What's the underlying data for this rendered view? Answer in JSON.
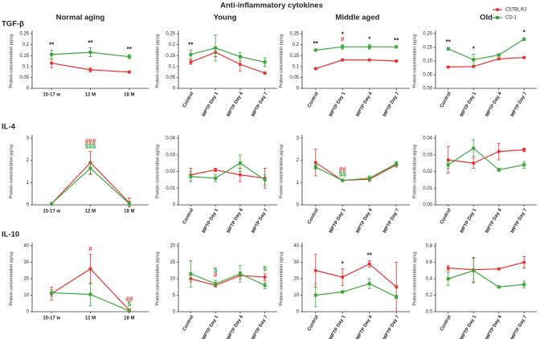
{
  "figure": {
    "title": "Anti-inflammatory cytokines",
    "columns": [
      "Normal aging",
      "Young",
      "Middle aged",
      "Old"
    ],
    "rows": [
      "TGF-β",
      "IL-4",
      "IL-10"
    ]
  },
  "chart_data": [
    {
      "type": "line",
      "ylabel": "Protein concentration pg/ug",
      "categories": [
        "15-17 w",
        "12 M",
        "18 M"
      ],
      "ylim": [
        0,
        0.25
      ],
      "yticks": [
        0,
        0.05,
        0.1,
        0.15,
        0.2,
        0.25
      ],
      "series": [
        {
          "name": "C57BL/6J",
          "color": "#e8312f",
          "marker": "circle",
          "values": [
            0.115,
            0.085,
            0.075
          ],
          "errors": [
            0.02,
            0.01,
            0.005
          ]
        },
        {
          "name": "CD-1",
          "color": "#3aa83a",
          "marker": "square",
          "values": [
            0.155,
            0.165,
            0.145
          ],
          "errors": [
            0.02,
            0.02,
            0.01
          ]
        }
      ],
      "annotations": [
        {
          "category": 0,
          "text": "**",
          "color": "#222"
        },
        {
          "category": 1,
          "text": "**",
          "color": "#222"
        },
        {
          "category": 2,
          "text": "**",
          "color": "#222"
        }
      ]
    },
    {
      "type": "line",
      "ylabel": "Protein concentration pg/ug",
      "categories": [
        "Control",
        "MPTP Day 1",
        "MPTP Day 4",
        "MPTP Day 7"
      ],
      "ylim": [
        0,
        0.25
      ],
      "yticks": [
        0,
        0.05,
        0.1,
        0.15,
        0.2,
        0.25
      ],
      "series": [
        {
          "name": "C57BL/6J",
          "color": "#e8312f",
          "marker": "circle",
          "values": [
            0.12,
            0.165,
            0.11,
            0.07
          ],
          "errors": [
            0.01,
            0.02,
            0.03,
            0.005
          ]
        },
        {
          "name": "CD-1",
          "color": "#3aa83a",
          "marker": "square",
          "values": [
            0.155,
            0.185,
            0.145,
            0.12
          ],
          "errors": [
            0.02,
            0.06,
            0.02,
            0.02
          ]
        }
      ],
      "annotations": [
        {
          "category": 0,
          "text": "**",
          "color": "#222"
        }
      ]
    },
    {
      "type": "line",
      "ylabel": "Protein concentration pg/ug",
      "categories": [
        "Control",
        "MPTP Day 1",
        "MPTP Day 4",
        "MPTP Day 7"
      ],
      "ylim": [
        0,
        0.25
      ],
      "yticks": [
        0,
        0.05,
        0.1,
        0.15,
        0.2,
        0.25
      ],
      "series": [
        {
          "name": "C57BL/6J",
          "color": "#e8312f",
          "marker": "circle",
          "values": [
            0.09,
            0.13,
            0.13,
            0.125
          ],
          "errors": [
            0.005,
            0.005,
            0.005,
            0.005
          ]
        },
        {
          "name": "CD-1",
          "color": "#3aa83a",
          "marker": "square",
          "values": [
            0.175,
            0.19,
            0.19,
            0.19
          ],
          "errors": [
            0.005,
            0.01,
            0.01,
            0.005
          ]
        }
      ],
      "annotations": [
        {
          "category": 0,
          "text": "**",
          "color": "#222"
        },
        {
          "category": 1,
          "text": "#",
          "color": "#e8312f"
        },
        {
          "category": 1,
          "text": "*",
          "color": "#222"
        },
        {
          "category": 2,
          "text": "*",
          "color": "#222"
        },
        {
          "category": 3,
          "text": "**",
          "color": "#222"
        }
      ]
    },
    {
      "type": "line",
      "ylabel": "Protein concentration pg/ug",
      "categories": [
        "Control",
        "MPTP Day 1",
        "MPTP Day 4",
        "MPTP Day 7"
      ],
      "ylim": [
        0,
        0.2
      ],
      "yticks": [
        {
          "value": 0,
          "label": "0.00"
        },
        {
          "value": 0.05,
          "label": "0.05"
        },
        {
          "value": 0.1,
          "label": "0.10"
        },
        {
          "value": 0.15,
          "label": "0.15"
        },
        {
          "value": 0.2,
          "label": "0.20"
        }
      ],
      "legend": "upper right",
      "series": [
        {
          "name": "C57BL/6J",
          "color": "#e8312f",
          "marker": "circle",
          "values": [
            0.078,
            0.08,
            0.108,
            0.113
          ],
          "errors": [
            0.003,
            0.003,
            0.004,
            0.003
          ]
        },
        {
          "name": "CD-1",
          "color": "#3aa83a",
          "marker": "square",
          "values": [
            0.145,
            0.105,
            0.122,
            0.18
          ],
          "errors": [
            0.005,
            0.02,
            0.005,
            0.005
          ]
        }
      ],
      "annotations": [
        {
          "category": 0,
          "text": "**",
          "color": "#222"
        },
        {
          "category": 1,
          "text": "*",
          "color": "#222"
        },
        {
          "category": 3,
          "text": "*",
          "color": "#222"
        }
      ]
    },
    {
      "type": "line",
      "ylabel": "Protein concentration pg/ug",
      "categories": [
        "15-17 w",
        "12 M",
        "18 M"
      ],
      "ylim": [
        0,
        3
      ],
      "yticks": [
        0,
        1,
        2,
        3
      ],
      "series": [
        {
          "name": "C57BL/6J",
          "color": "#e8312f",
          "marker": "circle",
          "values": [
            0.05,
            1.9,
            0.1
          ],
          "errors": [
            0.05,
            0.5,
            0.2
          ]
        },
        {
          "name": "CD-1",
          "color": "#3aa83a",
          "marker": "square",
          "values": [
            0.05,
            1.65,
            0.05
          ],
          "errors": [
            0.05,
            0.3,
            0.1
          ]
        }
      ],
      "annotations": [
        {
          "category": 1,
          "text": "$$$",
          "color": "#3aa83a"
        },
        {
          "category": 1,
          "text": "###",
          "color": "#e8312f"
        }
      ]
    },
    {
      "type": "line",
      "ylabel": "Protein concentration pg/ug",
      "categories": [
        "Control",
        "MPTP Day 1",
        "MPTP Day 4",
        "MPTP Day 7"
      ],
      "ylim": [
        0,
        0.04
      ],
      "yticks": [
        0,
        0.01,
        0.02,
        0.03,
        0.04
      ],
      "series": [
        {
          "name": "C57BL/6J",
          "color": "#e8312f",
          "marker": "circle",
          "values": [
            0.018,
            0.021,
            0.018,
            0.016
          ],
          "errors": [
            0.004,
            0.001,
            0.004,
            0.006
          ]
        },
        {
          "name": "CD-1",
          "color": "#3aa83a",
          "marker": "square",
          "values": [
            0.017,
            0.016,
            0.025,
            0.015
          ],
          "errors": [
            0.003,
            0.002,
            0.005,
            0.003
          ]
        }
      ],
      "annotations": []
    },
    {
      "type": "line",
      "ylabel": "Protein concentration pg/ug",
      "categories": [
        "Control",
        "MPTP Day 1",
        "MPTP Day 4",
        "MPTP Day 7"
      ],
      "ylim": [
        0,
        3
      ],
      "yticks": [
        0,
        1,
        2,
        3
      ],
      "series": [
        {
          "name": "C57BL/6J",
          "color": "#e8312f",
          "marker": "circle",
          "values": [
            1.9,
            1.1,
            1.15,
            1.8
          ],
          "errors": [
            0.6,
            0.05,
            0.1,
            0.1
          ]
        },
        {
          "name": "CD-1",
          "color": "#3aa83a",
          "marker": "square",
          "values": [
            1.7,
            1.1,
            1.2,
            1.85
          ],
          "errors": [
            0.1,
            0.05,
            0.1,
            0.1
          ]
        }
      ],
      "annotations": [
        {
          "category": 1,
          "text": "$$",
          "color": "#3aa83a"
        },
        {
          "category": 1,
          "text": "##",
          "color": "#e8312f"
        }
      ]
    },
    {
      "type": "line",
      "ylabel": "Protein concentration pg/ug",
      "categories": [
        "Control",
        "MPTP Day 1",
        "MPTP Day 4",
        "MPTP Day 7"
      ],
      "ylim": [
        0,
        0.04
      ],
      "yticks": [
        {
          "value": 0,
          "label": "0.00"
        },
        {
          "value": 0.01,
          "label": "0.01"
        },
        {
          "value": 0.02,
          "label": "0.02"
        },
        {
          "value": 0.03,
          "label": "0.03"
        },
        {
          "value": 0.04,
          "label": "0.04"
        }
      ],
      "series": [
        {
          "name": "C57BL/6J",
          "color": "#e8312f",
          "marker": "circle",
          "values": [
            0.027,
            0.025,
            0.032,
            0.033
          ],
          "errors": [
            0.008,
            0.003,
            0.005,
            0.001
          ]
        },
        {
          "name": "CD-1",
          "color": "#3aa83a",
          "marker": "square",
          "values": [
            0.024,
            0.034,
            0.021,
            0.024
          ],
          "errors": [
            0.002,
            0.005,
            0.001,
            0.002
          ]
        }
      ],
      "annotations": []
    },
    {
      "type": "line",
      "ylabel": "Protein concentration pg/ug",
      "categories": [
        "15-17 w",
        "12 M",
        "18 M"
      ],
      "ylim": [
        0,
        40
      ],
      "yticks": [
        0,
        10,
        20,
        30,
        40
      ],
      "series": [
        {
          "name": "C57BL/6J",
          "color": "#e8312f",
          "marker": "circle",
          "values": [
            11,
            26,
            1
          ],
          "errors": [
            4,
            9,
            0.5
          ]
        },
        {
          "name": "CD-1",
          "color": "#3aa83a",
          "marker": "square",
          "values": [
            11.5,
            10.5,
            0.5
          ],
          "errors": [
            2,
            7,
            0.5
          ]
        }
      ],
      "annotations": [
        {
          "category": 1,
          "text": "#",
          "color": "#e8312f"
        },
        {
          "category": 2,
          "text": "$",
          "color": "#3aa83a"
        },
        {
          "category": 2,
          "text": "##",
          "color": "#e8312f"
        }
      ]
    },
    {
      "type": "line",
      "ylabel": "Protein concentration pg/ug",
      "categories": [
        "Control",
        "MPTP Day 1",
        "MPTP Day 4",
        "MPTP Day 7"
      ],
      "ylim": [
        0,
        20
      ],
      "yticks": [
        0,
        5,
        10,
        15,
        20
      ],
      "series": [
        {
          "name": "C57BL/6J",
          "color": "#e8312f",
          "marker": "circle",
          "values": [
            10,
            8,
            11,
            10.5
          ],
          "errors": [
            1,
            0.5,
            1,
            1
          ]
        },
        {
          "name": "CD-1",
          "color": "#3aa83a",
          "marker": "square",
          "values": [
            11.5,
            8.5,
            11.5,
            8
          ],
          "errors": [
            4,
            1,
            2.5,
            1
          ]
        }
      ],
      "annotations": [
        {
          "category": 1,
          "text": "#",
          "color": "#e8312f"
        },
        {
          "category": 1,
          "text": "$",
          "color": "#3aa83a"
        },
        {
          "category": 3,
          "text": "$",
          "color": "#3aa83a"
        }
      ]
    },
    {
      "type": "line",
      "ylabel": "Protein concentration pg/ug",
      "categories": [
        "Control",
        "MPTP Day 1",
        "MPTP Day 4",
        "MPTP Day 7"
      ],
      "ylim": [
        0,
        40
      ],
      "yticks": [
        0,
        10,
        20,
        30,
        40
      ],
      "series": [
        {
          "name": "C57BL/6J",
          "color": "#e8312f",
          "marker": "circle",
          "values": [
            25,
            21,
            29,
            15
          ],
          "errors": [
            10,
            5,
            2,
            15
          ]
        },
        {
          "name": "CD-1",
          "color": "#3aa83a",
          "marker": "square",
          "values": [
            10,
            12,
            17,
            9
          ],
          "errors": [
            7,
            0.5,
            3,
            1
          ]
        }
      ],
      "annotations": [
        {
          "category": 1,
          "text": "*",
          "color": "#222"
        },
        {
          "category": 2,
          "text": "**",
          "color": "#222"
        }
      ]
    },
    {
      "type": "line",
      "ylabel": "Protein concentration pg/ug",
      "categories": [
        "Control",
        "MPTP Day 1",
        "MPTP Day 4",
        "MPTP Day 7"
      ],
      "ylim": [
        0,
        0.8
      ],
      "yticks": [
        {
          "value": 0,
          "label": "0.0"
        },
        {
          "value": 0.2,
          "label": "0.2"
        },
        {
          "value": 0.4,
          "label": "0.4"
        },
        {
          "value": 0.6,
          "label": "0.6"
        },
        {
          "value": 0.8,
          "label": "0.8"
        }
      ],
      "series": [
        {
          "name": "C57BL/6J",
          "color": "#e8312f",
          "marker": "circle",
          "values": [
            0.53,
            0.51,
            0.52,
            0.6
          ],
          "errors": [
            0.03,
            0.15,
            0.01,
            0.07
          ]
        },
        {
          "name": "CD-1",
          "color": "#3aa83a",
          "marker": "square",
          "values": [
            0.4,
            0.5,
            0.3,
            0.33
          ],
          "errors": [
            0.08,
            0.15,
            0.01,
            0.04
          ]
        }
      ],
      "annotations": []
    }
  ]
}
